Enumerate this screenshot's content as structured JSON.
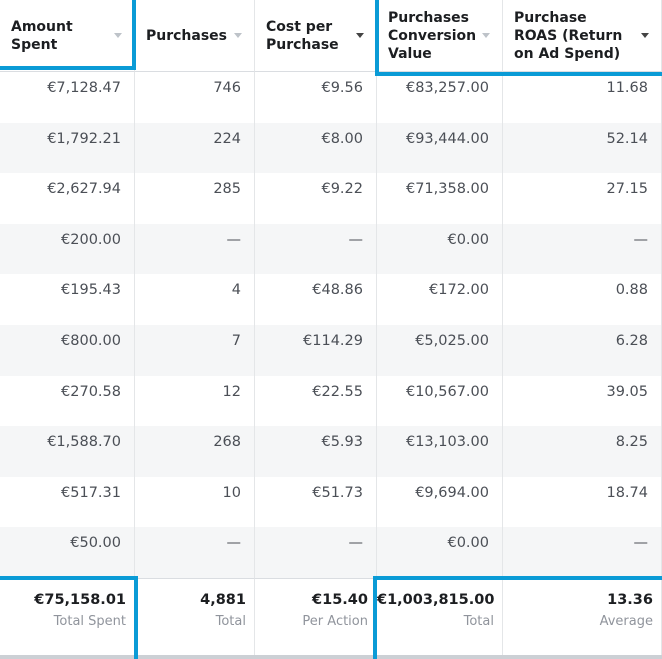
{
  "header": {
    "columns": [
      {
        "lines": [
          "Amount",
          "Spent"
        ]
      },
      {
        "lines": [
          "Purchases"
        ]
      },
      {
        "lines": [
          "Cost per",
          "Purchase"
        ]
      },
      {
        "lines": [
          "Purchases",
          "Conversion",
          "Value"
        ]
      },
      {
        "lines": [
          "Purchase",
          "ROAS (Return",
          "on Ad Spend)"
        ]
      }
    ]
  },
  "table": {
    "rows": [
      [
        "€7,128.47",
        "746",
        "€9.56",
        "€83,257.00",
        "11.68"
      ],
      [
        "€1,792.21",
        "224",
        "€8.00",
        "€93,444.00",
        "52.14"
      ],
      [
        "€2,627.94",
        "285",
        "€9.22",
        "€71,358.00",
        "27.15"
      ],
      [
        "€200.00",
        "—",
        "—",
        "€0.00",
        "—"
      ],
      [
        "€195.43",
        "4",
        "€48.86",
        "€172.00",
        "0.88"
      ],
      [
        "€800.00",
        "7",
        "€114.29",
        "€5,025.00",
        "6.28"
      ],
      [
        "€270.58",
        "12",
        "€22.55",
        "€10,567.00",
        "39.05"
      ],
      [
        "€1,588.70",
        "268",
        "€5.93",
        "€13,103.00",
        "8.25"
      ],
      [
        "€517.31",
        "10",
        "€51.73",
        "€9,694.00",
        "18.74"
      ],
      [
        "€50.00",
        "—",
        "—",
        "€0.00",
        "—"
      ]
    ]
  },
  "footer": [
    {
      "value": "€75,158.01",
      "label": "Total Spent"
    },
    {
      "value": "4,881",
      "label": "Total"
    },
    {
      "value": "€15.40",
      "label": "Per Action"
    },
    {
      "value": "€1,003,815.00",
      "label": "Total"
    },
    {
      "value": "13.36",
      "label": "Average"
    }
  ]
}
